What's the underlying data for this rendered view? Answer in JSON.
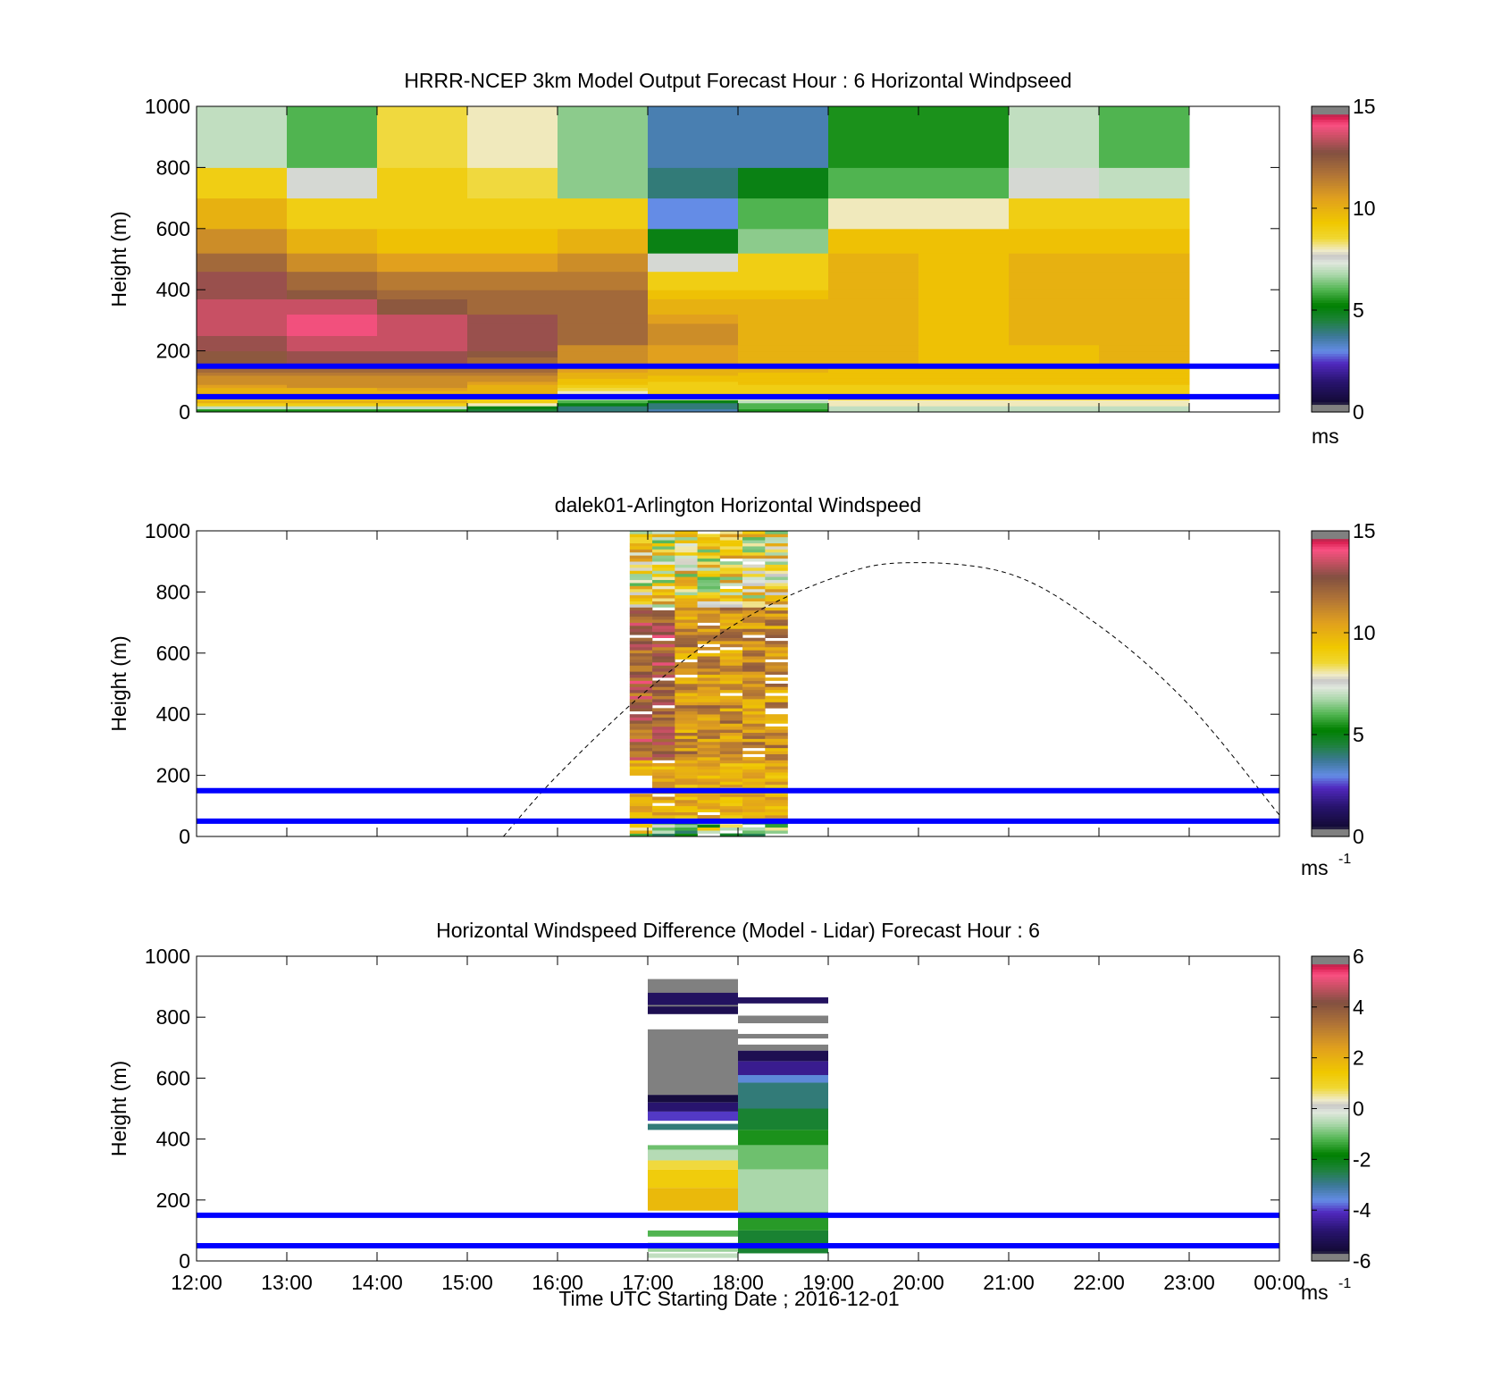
{
  "chart_data": {
    "type": "heatmap",
    "xlabel": "Time UTC  Starting Date ; 2016-12-01",
    "x_tick_labels": [
      "12:00",
      "13:00",
      "14:00",
      "15:00",
      "16:00",
      "17:00",
      "18:00",
      "19:00",
      "20:00",
      "21:00",
      "22:00",
      "23:00",
      "00:00"
    ],
    "x_range_hours": [
      12,
      24
    ],
    "reference_lines_m": [
      150,
      50
    ],
    "reference_line_color": "#0000ff",
    "panels": [
      {
        "id": "model",
        "title": "HRRR-NCEP 3km Model Output   Forecast Hour : 6 Horizontal Windpseed",
        "ylabel": "Height (m)",
        "ylim": [
          0,
          1000
        ],
        "y_tick_labels": [
          "0",
          "200",
          "400",
          "600",
          "800",
          "1000"
        ],
        "colorbar": {
          "range": [
            0,
            15
          ],
          "tick_labels": [
            "0",
            "5",
            "10",
            "15"
          ],
          "unit": "ms",
          "unit_sup": ""
        },
        "cells": {
          "x_edges_h": [
            12,
            13,
            14,
            15,
            16,
            17,
            18,
            19,
            20,
            21,
            22,
            23
          ],
          "y_edges_m": [
            0,
            10,
            20,
            30,
            40,
            50,
            60,
            70,
            80,
            90,
            100,
            110,
            120,
            130,
            140,
            150,
            160,
            170,
            180,
            200,
            220,
            250,
            290,
            320,
            370,
            400,
            460,
            520,
            600,
            700,
            800,
            1000
          ],
          "values": [
            [
              5.5,
              5.5,
              5.5,
              4.5,
              4,
              3.5,
              5.5,
              7,
              7,
              7,
              7
            ],
            [
              7,
              7,
              7,
              5,
              4,
              4,
              6,
              7,
              7,
              7,
              7
            ],
            [
              9,
              9,
              9,
              8,
              5,
              4,
              6,
              8,
              8,
              8,
              8
            ],
            [
              10,
              10,
              10,
              9,
              6,
              5,
              7,
              8,
              8,
              8,
              8
            ],
            [
              9,
              9,
              9,
              9,
              7,
              8,
              8,
              9,
              9,
              9,
              9
            ],
            [
              9.5,
              10,
              9.5,
              9.5,
              7.5,
              9,
              9,
              9,
              9,
              9,
              9
            ],
            [
              10,
              10,
              10,
              10,
              8,
              9,
              9,
              9,
              9,
              9,
              9
            ],
            [
              10,
              10,
              10.5,
              10,
              8.5,
              9,
              9,
              9,
              9,
              9,
              9
            ],
            [
              10.5,
              11,
              11,
              10,
              9,
              9,
              9,
              9,
              9,
              9,
              9
            ],
            [
              11,
              11,
              11,
              10.5,
              9.5,
              9,
              9.5,
              9.5,
              9.5,
              9.5,
              9.5
            ],
            [
              11,
              11,
              11,
              11,
              9.5,
              9.5,
              9.5,
              9.5,
              9.5,
              9.5,
              9.5
            ],
            [
              11,
              11,
              11,
              11,
              10,
              9.5,
              9.5,
              9.5,
              9.5,
              9.5,
              9.5
            ],
            [
              11.5,
              11.5,
              11.5,
              11.5,
              10,
              10,
              9.5,
              9.5,
              9.5,
              9.5,
              9.5
            ],
            [
              12,
              12,
              12,
              12,
              10.5,
              10,
              10,
              9.5,
              9.5,
              9.5,
              9.5
            ],
            [
              12,
              12,
              12,
              12,
              10.5,
              10,
              10,
              9.5,
              9.5,
              9.5,
              9.5
            ],
            [
              12.5,
              13,
              13,
              12,
              11,
              10.5,
              10,
              10,
              9.5,
              9.5,
              10
            ],
            [
              12.5,
              13,
              13,
              12,
              11,
              10.5,
              10,
              10,
              9.5,
              9.5,
              10
            ],
            [
              12.5,
              13,
              13,
              12,
              11,
              10.5,
              10,
              10,
              9.5,
              9.5,
              10
            ],
            [
              12.5,
              13,
              13,
              12.5,
              11,
              10.5,
              10,
              10,
              9.5,
              9.5,
              10
            ],
            [
              13,
              13.5,
              13.5,
              13,
              11,
              10.5,
              10,
              10,
              9.5,
              9.5,
              10
            ],
            [
              13,
              13.5,
              13.5,
              13,
              12,
              11,
              10,
              10,
              9.5,
              10,
              10
            ],
            [
              13.5,
              14,
              13.5,
              13,
              12,
              11,
              10,
              10,
              9.5,
              10,
              10
            ],
            [
              13.5,
              14,
              13.5,
              13,
              12,
              10.5,
              10,
              10,
              9.5,
              10,
              10
            ],
            [
              13.5,
              13.5,
              12.5,
              12,
              12,
              10,
              10,
              10,
              9.5,
              10,
              10
            ],
            [
              13,
              12.5,
              12,
              12,
              12,
              9.5,
              9.5,
              10,
              9.5,
              10,
              10
            ],
            [
              13,
              12,
              11.5,
              11.5,
              11.5,
              9,
              9,
              10,
              9.5,
              10,
              10
            ],
            [
              12,
              11,
              10.5,
              10.5,
              11,
              7.5,
              9,
              10,
              9.5,
              10,
              10
            ],
            [
              11,
              10,
              9.5,
              9.5,
              10,
              5,
              6.5,
              9.5,
              9.5,
              9.5,
              9.5
            ],
            [
              10,
              9,
              9,
              9,
              9,
              3,
              6,
              8,
              8,
              9,
              9
            ],
            [
              9,
              7.5,
              9,
              8.5,
              6.5,
              4,
              5,
              6,
              6,
              7.5,
              7
            ],
            [
              7,
              6,
              8.5,
              8,
              6.5,
              3.5,
              3.5,
              5.5,
              5.5,
              7,
              6
            ]
          ]
        }
      },
      {
        "id": "lidar",
        "title": "dalek01-Arlington  Horizontal Windspeed",
        "ylabel": "Height (m)",
        "ylim": [
          0,
          1000
        ],
        "y_tick_labels": [
          "0",
          "200",
          "400",
          "600",
          "800",
          "1000"
        ],
        "colorbar": {
          "range": [
            0,
            15
          ],
          "tick_labels": [
            "0",
            "5",
            "10",
            "15"
          ],
          "unit": "ms",
          "unit_sup": "-1"
        },
        "observed_span_h": [
          16.8,
          18.55
        ],
        "solar_elevation_curve": {
          "x_h": [
            15.4,
            16,
            17,
            18,
            19,
            19.8,
            21,
            22,
            23,
            24
          ],
          "y_m": [
            0,
            200,
            480,
            700,
            840,
            895,
            860,
            690,
            430,
            70
          ]
        }
      },
      {
        "id": "difference",
        "title": "Horizontal Windspeed Difference (Model - Lidar) Forecast Hour : 6",
        "ylabel": "Height (m)",
        "ylim": [
          0,
          1000
        ],
        "y_tick_labels": [
          "0",
          "200",
          "400",
          "600",
          "800",
          "1000"
        ],
        "colorbar": {
          "range": [
            -6,
            6
          ],
          "tick_labels": [
            "-6",
            "-4",
            "-2",
            "0",
            "2",
            "4",
            "6"
          ],
          "unit": "ms",
          "unit_sup": "-1"
        },
        "columns": [
          {
            "x_range_h": [
              17,
              18
            ],
            "bands": [
              {
                "y0": 830,
                "y1": 925,
                "v": -6.5
              },
              {
                "y0": 840,
                "y1": 880,
                "v": -5
              },
              {
                "y0": 810,
                "y1": 835,
                "v": -5.2
              },
              {
                "y0": 545,
                "y1": 760,
                "v": -6.5
              },
              {
                "y0": 520,
                "y1": 545,
                "v": -5.5
              },
              {
                "y0": 490,
                "y1": 520,
                "v": -4.8
              },
              {
                "y0": 460,
                "y1": 490,
                "v": -4
              },
              {
                "y0": 430,
                "y1": 450,
                "v": -2.8
              },
              {
                "y0": 365,
                "y1": 380,
                "v": -1
              },
              {
                "y0": 330,
                "y1": 365,
                "v": -0.5
              },
              {
                "y0": 300,
                "y1": 330,
                "v": 0.8
              },
              {
                "y0": 240,
                "y1": 300,
                "v": 1.3
              },
              {
                "y0": 165,
                "y1": 240,
                "v": 1.8
              },
              {
                "y0": 80,
                "y1": 100,
                "v": -1.2
              },
              {
                "y0": 30,
                "y1": 60,
                "v": -0.7
              },
              {
                "y0": 10,
                "y1": 25,
                "v": -0.4
              }
            ]
          },
          {
            "x_range_h": [
              18,
              19
            ],
            "bands": [
              {
                "y0": 845,
                "y1": 865,
                "v": -5
              },
              {
                "y0": 780,
                "y1": 805,
                "v": -5.8
              },
              {
                "y0": 730,
                "y1": 745,
                "v": -5.8
              },
              {
                "y0": 690,
                "y1": 710,
                "v": -5.8
              },
              {
                "y0": 655,
                "y1": 690,
                "v": -5.2
              },
              {
                "y0": 610,
                "y1": 655,
                "v": -4.5
              },
              {
                "y0": 585,
                "y1": 610,
                "v": -3.5
              },
              {
                "y0": 500,
                "y1": 585,
                "v": -2.8
              },
              {
                "y0": 430,
                "y1": 500,
                "v": -2.3
              },
              {
                "y0": 380,
                "y1": 430,
                "v": -1.6
              },
              {
                "y0": 300,
                "y1": 380,
                "v": -1
              },
              {
                "y0": 160,
                "y1": 300,
                "v": -0.6
              },
              {
                "y0": 100,
                "y1": 160,
                "v": -1.5
              },
              {
                "y0": 25,
                "y1": 100,
                "v": -2.3
              }
            ]
          }
        ]
      }
    ]
  }
}
